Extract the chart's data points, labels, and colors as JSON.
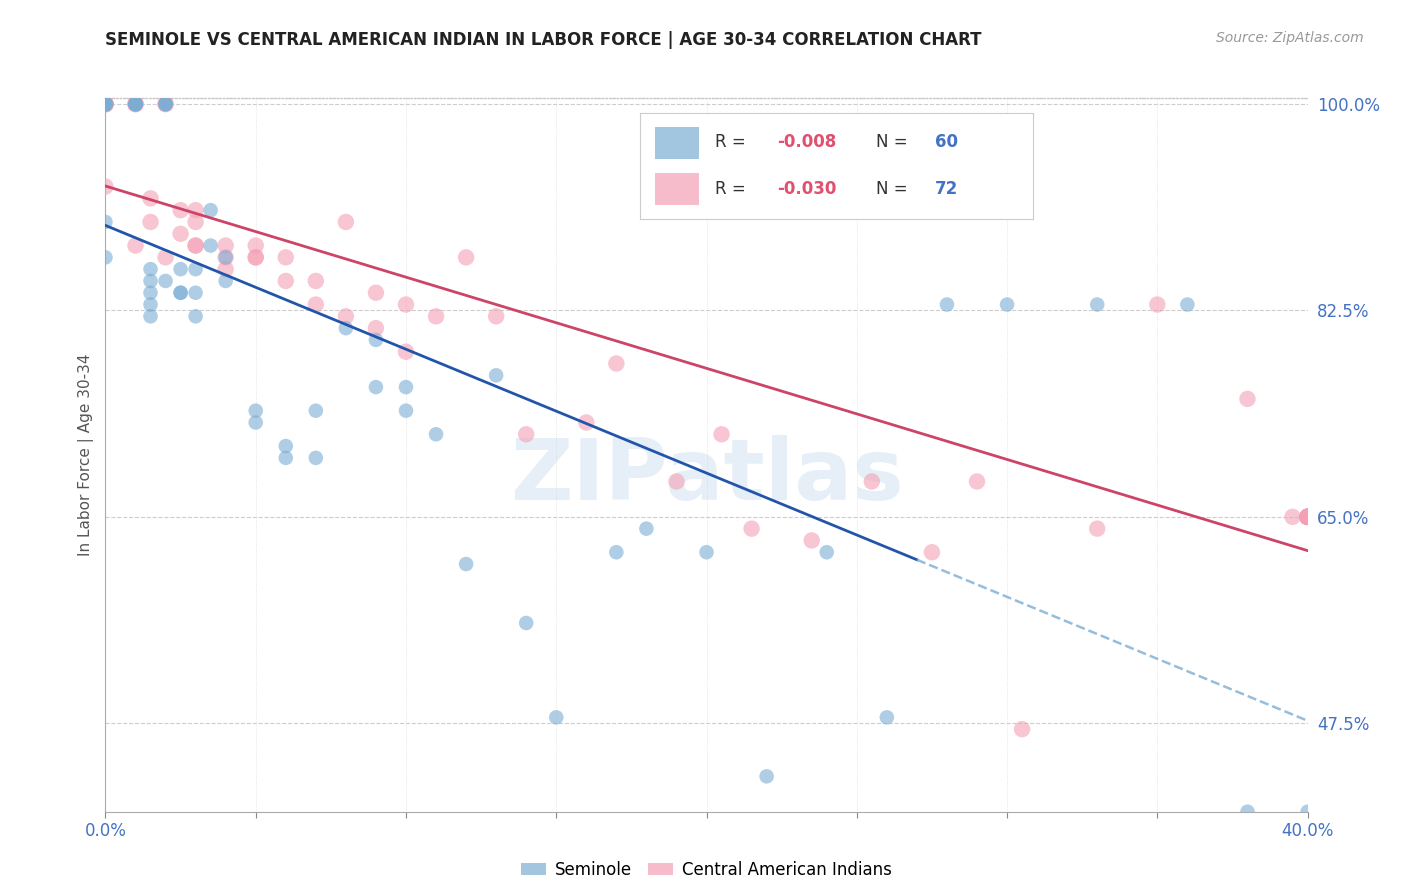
{
  "title": "SEMINOLE VS CENTRAL AMERICAN INDIAN IN LABOR FORCE | AGE 30-34 CORRELATION CHART",
  "source": "Source: ZipAtlas.com",
  "ylabel": "In Labor Force | Age 30-34",
  "xlim": [
    0.0,
    0.4
  ],
  "ylim": [
    0.4,
    1.005
  ],
  "r_blue": -0.008,
  "n_blue": 60,
  "r_pink": -0.03,
  "n_pink": 72,
  "blue_color": "#7BADD4",
  "pink_color": "#F4A0B5",
  "trend_blue_color": "#2255AA",
  "trend_pink_color": "#CC4466",
  "dashed_blue_color": "#7BADD4",
  "watermark": "ZIPatlas",
  "legend_label_blue": "Seminole",
  "legend_label_pink": "Central American Indians",
  "grid_color": "#c8c8c8",
  "background_color": "#ffffff",
  "axis_label_color": "#4472c4",
  "yticks_right": [
    0.475,
    0.65,
    0.825,
    1.0
  ],
  "yticklabels_right": [
    "47.5%",
    "65.0%",
    "82.5%",
    "100.0%"
  ],
  "blue_scatter_x": [
    0.0,
    0.0,
    0.0,
    0.0,
    0.0,
    0.0,
    0.0,
    0.0,
    0.01,
    0.01,
    0.01,
    0.01,
    0.01,
    0.015,
    0.015,
    0.015,
    0.015,
    0.015,
    0.02,
    0.02,
    0.02,
    0.02,
    0.025,
    0.025,
    0.025,
    0.03,
    0.03,
    0.03,
    0.035,
    0.035,
    0.04,
    0.04,
    0.05,
    0.05,
    0.06,
    0.06,
    0.07,
    0.07,
    0.08,
    0.09,
    0.09,
    0.1,
    0.1,
    0.11,
    0.12,
    0.13,
    0.14,
    0.15,
    0.17,
    0.18,
    0.2,
    0.22,
    0.24,
    0.26,
    0.28,
    0.3,
    0.33,
    0.36,
    0.38,
    0.4
  ],
  "blue_scatter_y": [
    1.0,
    1.0,
    1.0,
    1.0,
    1.0,
    1.0,
    0.9,
    0.87,
    1.0,
    1.0,
    1.0,
    1.0,
    1.0,
    0.86,
    0.84,
    0.83,
    0.82,
    0.85,
    1.0,
    1.0,
    1.0,
    0.85,
    0.86,
    0.84,
    0.84,
    0.86,
    0.84,
    0.82,
    0.91,
    0.88,
    0.87,
    0.85,
    0.74,
    0.73,
    0.71,
    0.7,
    0.74,
    0.7,
    0.81,
    0.8,
    0.76,
    0.76,
    0.74,
    0.72,
    0.61,
    0.77,
    0.56,
    0.48,
    0.62,
    0.64,
    0.62,
    0.43,
    0.62,
    0.48,
    0.83,
    0.83,
    0.83,
    0.83,
    0.4,
    0.4
  ],
  "pink_scatter_x": [
    0.0,
    0.0,
    0.0,
    0.0,
    0.0,
    0.0,
    0.0,
    0.0,
    0.0,
    0.01,
    0.01,
    0.01,
    0.01,
    0.015,
    0.015,
    0.02,
    0.02,
    0.02,
    0.025,
    0.025,
    0.03,
    0.03,
    0.03,
    0.03,
    0.04,
    0.04,
    0.04,
    0.05,
    0.05,
    0.05,
    0.06,
    0.06,
    0.07,
    0.07,
    0.08,
    0.08,
    0.09,
    0.09,
    0.1,
    0.1,
    0.11,
    0.12,
    0.13,
    0.14,
    0.16,
    0.17,
    0.19,
    0.205,
    0.215,
    0.235,
    0.255,
    0.275,
    0.29,
    0.305,
    0.33,
    0.35,
    0.38,
    0.395,
    0.4,
    0.4,
    0.4,
    0.4,
    0.4,
    0.4,
    0.4,
    0.4,
    0.4,
    0.4,
    0.4,
    0.4,
    0.4,
    0.4
  ],
  "pink_scatter_y": [
    1.0,
    1.0,
    1.0,
    1.0,
    1.0,
    1.0,
    1.0,
    1.0,
    0.93,
    1.0,
    1.0,
    1.0,
    0.88,
    0.92,
    0.9,
    1.0,
    1.0,
    0.87,
    0.91,
    0.89,
    0.91,
    0.9,
    0.88,
    0.88,
    0.88,
    0.87,
    0.86,
    0.88,
    0.87,
    0.87,
    0.87,
    0.85,
    0.85,
    0.83,
    0.9,
    0.82,
    0.81,
    0.84,
    0.83,
    0.79,
    0.82,
    0.87,
    0.82,
    0.72,
    0.73,
    0.78,
    0.68,
    0.72,
    0.64,
    0.63,
    0.68,
    0.62,
    0.68,
    0.47,
    0.64,
    0.83,
    0.75,
    0.65,
    0.65,
    0.65,
    0.65,
    0.65,
    0.65,
    0.65,
    0.65,
    0.65,
    0.65,
    0.65,
    0.65,
    0.65,
    0.65,
    0.65
  ]
}
